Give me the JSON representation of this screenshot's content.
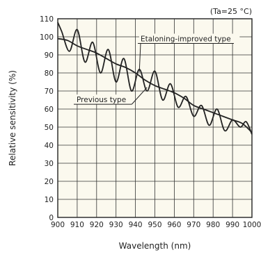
{
  "chart_data": {
    "type": "line",
    "title": "",
    "annotation": "(Ta=25 °C)",
    "xlabel": "Wavelength (nm)",
    "ylabel": "Relative sensitivity (%)",
    "xlim": [
      900,
      1000
    ],
    "ylim": [
      0,
      110
    ],
    "x_ticks": [
      900,
      910,
      920,
      930,
      940,
      950,
      960,
      970,
      980,
      990,
      1000
    ],
    "y_ticks": [
      0,
      10,
      20,
      30,
      40,
      50,
      60,
      70,
      80,
      90,
      100,
      110
    ],
    "grid": true,
    "series": [
      {
        "name": "Previous type",
        "x": [
          900,
          902,
          906,
          910,
          914,
          918,
          922,
          926,
          930,
          934,
          938,
          942,
          946,
          950,
          954,
          958,
          962,
          966,
          970,
          974,
          978,
          982,
          986,
          990,
          994,
          997,
          1000
        ],
        "y": [
          108,
          103,
          92,
          104,
          86,
          97,
          80,
          93,
          75,
          88,
          70,
          82,
          70,
          81,
          65,
          74,
          61,
          67,
          56,
          62,
          51,
          60,
          48,
          54,
          50,
          53,
          46
        ]
      },
      {
        "name": "Etaloning-improved type",
        "x": [
          900,
          905,
          910,
          915,
          920,
          925,
          930,
          935,
          940,
          945,
          950,
          955,
          960,
          965,
          970,
          975,
          980,
          985,
          990,
          995,
          1000
        ],
        "y": [
          99,
          98,
          95,
          93,
          91,
          88,
          85,
          83,
          80,
          76,
          73,
          71,
          69,
          66,
          62,
          60,
          58,
          56,
          54,
          52,
          47
        ]
      }
    ],
    "colors": {
      "line": "#222222",
      "grid": "#333333",
      "plot_bg": "#fbf9ee"
    }
  }
}
